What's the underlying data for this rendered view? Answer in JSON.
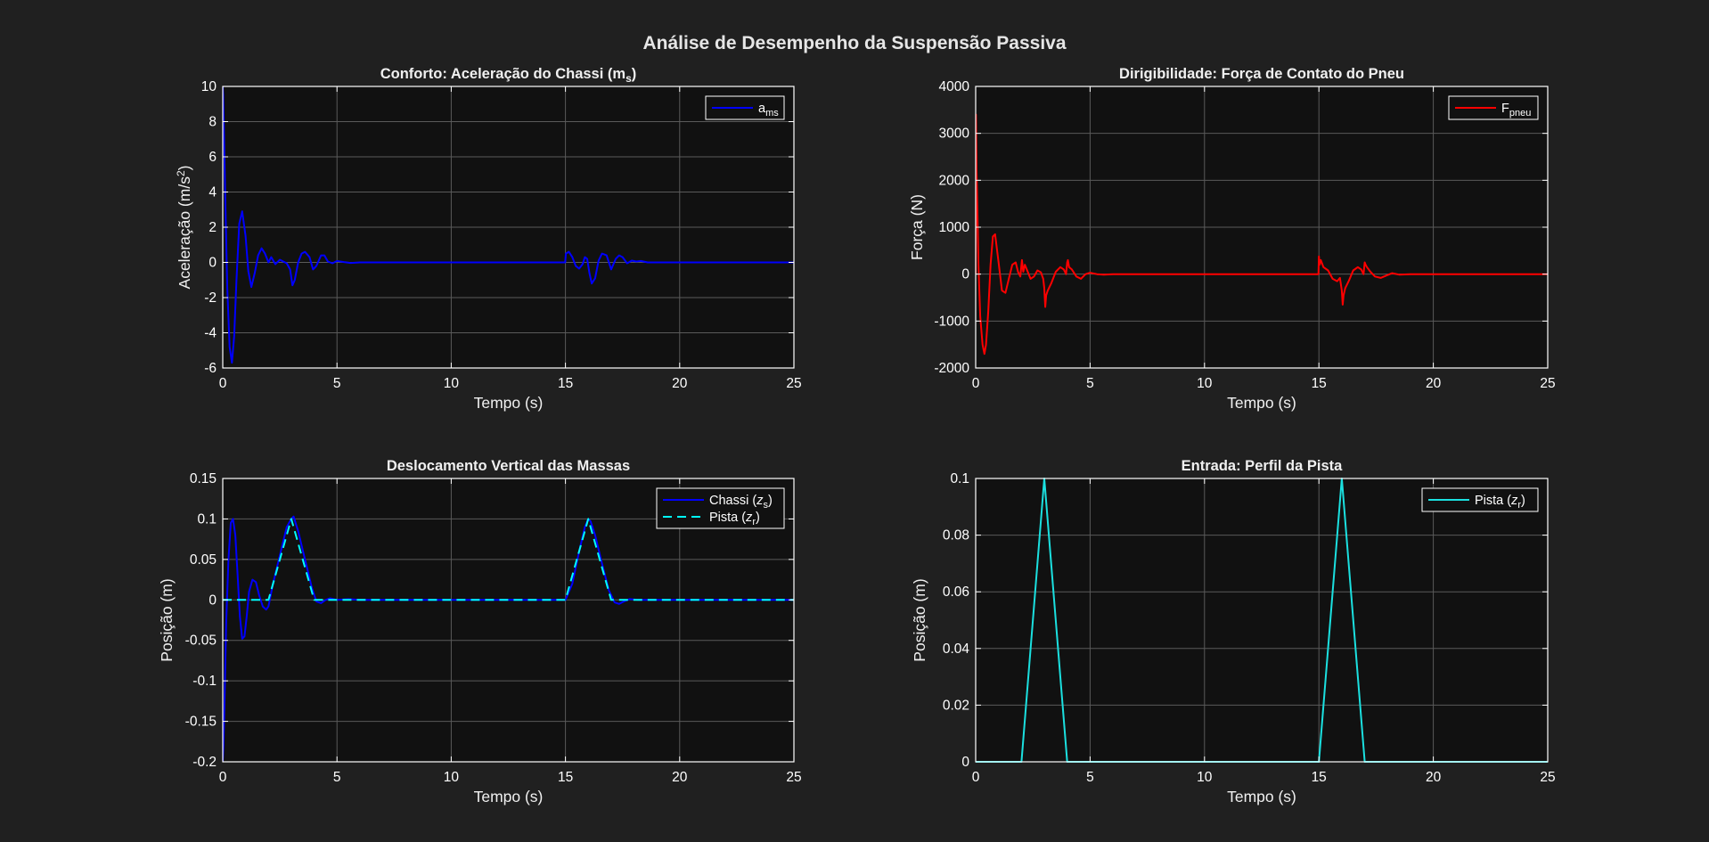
{
  "figure": {
    "title": "Análise de Desempenho da Suspensão Passiva",
    "background": "#202020",
    "axes_background": "#111111",
    "axes_color": "#ffffff",
    "grid_color": "#5a5a5a"
  },
  "chart_data": [
    {
      "id": "accel",
      "type": "line",
      "title": "Conforto: Aceleração do Chassi (m_s)",
      "title_parts": [
        "Conforto:  Aceleração  do  Chassi  (m",
        "s",
        ")"
      ],
      "xlabel": "Tempo (s)",
      "ylabel": "Aceleração (m/s²)",
      "ylabel_parts": [
        "Aceleração  (m/s",
        "2",
        ")"
      ],
      "xlim": [
        0,
        25
      ],
      "ylim": [
        -6,
        10
      ],
      "xticks": [
        0,
        5,
        10,
        15,
        20,
        25
      ],
      "yticks": [
        -6,
        -4,
        -2,
        0,
        2,
        4,
        6,
        8,
        10
      ],
      "grid": true,
      "legend_position": "top-right",
      "series": [
        {
          "name": "a_ms",
          "legend_parts": [
            "a",
            "ms"
          ],
          "color": "#0000ff",
          "dash": "solid",
          "x": [
            0,
            0.02,
            0.06,
            0.12,
            0.2,
            0.3,
            0.4,
            0.5,
            0.6,
            0.72,
            0.85,
            1.0,
            1.12,
            1.25,
            1.4,
            1.55,
            1.7,
            1.85,
            2.0,
            2.12,
            2.3,
            2.5,
            2.65,
            2.8,
            2.95,
            3.05,
            3.15,
            3.3,
            3.45,
            3.6,
            3.8,
            3.95,
            4.1,
            4.3,
            4.45,
            4.6,
            4.8,
            5.0,
            5.3,
            5.6,
            6.0,
            8,
            10,
            12,
            14,
            14.99,
            15.02,
            15.15,
            15.3,
            15.45,
            15.6,
            15.75,
            15.85,
            15.95,
            16.05,
            16.15,
            16.3,
            16.45,
            16.6,
            16.8,
            17.0,
            17.2,
            17.35,
            17.5,
            17.7,
            17.9,
            18.1,
            18.3,
            18.6,
            19.0,
            20,
            22,
            25
          ],
          "y": [
            10,
            9.5,
            7.0,
            3.0,
            -1.5,
            -4.8,
            -5.7,
            -4.2,
            -1.0,
            2.2,
            2.9,
            1.5,
            -0.5,
            -1.4,
            -0.6,
            0.4,
            0.8,
            0.5,
            0.0,
            0.3,
            -0.1,
            0.15,
            0.05,
            -0.05,
            -0.4,
            -1.3,
            -1.0,
            0.0,
            0.5,
            0.6,
            0.3,
            -0.4,
            -0.2,
            0.4,
            0.4,
            0.05,
            -0.05,
            0.08,
            0.02,
            -0.03,
            0.0,
            0.0,
            0.0,
            0.0,
            0.0,
            0.0,
            0.5,
            0.6,
            0.3,
            -0.2,
            -0.35,
            -0.1,
            0.3,
            0.2,
            -0.6,
            -1.2,
            -0.9,
            0.1,
            0.5,
            0.4,
            -0.4,
            0.2,
            0.4,
            0.3,
            -0.05,
            0.1,
            0.05,
            0.08,
            0.0,
            0.0,
            0.0,
            0.0,
            0.0
          ]
        }
      ]
    },
    {
      "id": "force",
      "type": "line",
      "title": "Dirigibilidade: Força de Contato do Pneu",
      "xlabel": "Tempo (s)",
      "ylabel": "Força (N)",
      "xlim": [
        0,
        25
      ],
      "ylim": [
        -2000,
        4000
      ],
      "xticks": [
        0,
        5,
        10,
        15,
        20,
        25
      ],
      "yticks": [
        -2000,
        -1000,
        0,
        1000,
        2000,
        3000,
        4000
      ],
      "grid": true,
      "legend_position": "top-right",
      "series": [
        {
          "name": "F_pneu",
          "legend_parts": [
            "F",
            "pneu"
          ],
          "color": "#ff0000",
          "dash": "solid",
          "x": [
            0,
            0.01,
            0.04,
            0.08,
            0.12,
            0.2,
            0.3,
            0.38,
            0.45,
            0.55,
            0.65,
            0.75,
            0.85,
            1.0,
            1.15,
            1.3,
            1.45,
            1.6,
            1.75,
            1.85,
            1.95,
            2.02,
            2.08,
            2.15,
            2.25,
            2.4,
            2.55,
            2.7,
            2.85,
            2.95,
            3.0,
            3.04,
            3.08,
            3.15,
            3.3,
            3.5,
            3.7,
            3.85,
            3.95,
            4.0,
            4.03,
            4.08,
            4.2,
            4.4,
            4.6,
            4.8,
            5.0,
            5.3,
            5.6,
            6.0,
            8,
            10,
            12,
            14,
            14.98,
            15.0,
            15.03,
            15.08,
            15.2,
            15.4,
            15.6,
            15.8,
            15.92,
            16.0,
            16.04,
            16.08,
            16.15,
            16.3,
            16.5,
            16.7,
            16.85,
            16.95,
            17.0,
            17.04,
            17.1,
            17.25,
            17.45,
            17.7,
            17.95,
            18.2,
            18.5,
            19.0,
            20,
            22,
            25
          ],
          "y": [
            0,
            3400,
            2200,
            1200,
            200,
            -900,
            -1500,
            -1700,
            -1500,
            -800,
            200,
            800,
            850,
            250,
            -350,
            -400,
            -100,
            200,
            250,
            50,
            -50,
            300,
            50,
            200,
            80,
            -100,
            -50,
            80,
            40,
            -100,
            -300,
            -700,
            -450,
            -350,
            -200,
            50,
            150,
            100,
            0,
            250,
            300,
            150,
            100,
            -50,
            -100,
            0,
            30,
            0,
            -10,
            0,
            0,
            0,
            0,
            0,
            0,
            380,
            200,
            300,
            150,
            80,
            -100,
            -150,
            -80,
            -350,
            -650,
            -450,
            -300,
            -150,
            80,
            150,
            100,
            0,
            250,
            200,
            150,
            50,
            -50,
            -80,
            -30,
            20,
            -10,
            0,
            0,
            0,
            0
          ]
        }
      ]
    },
    {
      "id": "displacement",
      "type": "line",
      "title": "Deslocamento Vertical das Massas",
      "xlabel": "Tempo (s)",
      "ylabel": "Posição (m)",
      "xlim": [
        0,
        25
      ],
      "ylim": [
        -0.2,
        0.15
      ],
      "xticks": [
        0,
        5,
        10,
        15,
        20,
        25
      ],
      "yticks": [
        -0.2,
        -0.15,
        -0.1,
        -0.05,
        0,
        0.05,
        0.1,
        0.15
      ],
      "ytick_labels": [
        "-0.2",
        "-0.15",
        "-0.1",
        "-0.05",
        "0",
        "0.05",
        "0.1",
        "0.15"
      ],
      "grid": true,
      "legend_position": "top-right",
      "series": [
        {
          "name": "Chassi (z_s)",
          "legend_parts": [
            "Chassi  (",
            "z",
            "s",
            ")"
          ],
          "color": "#0000ff",
          "dash": "solid",
          "x": [
            0,
            0.03,
            0.08,
            0.15,
            0.25,
            0.35,
            0.45,
            0.55,
            0.65,
            0.75,
            0.85,
            0.95,
            1.05,
            1.15,
            1.3,
            1.45,
            1.6,
            1.75,
            1.9,
            2.0,
            2.2,
            2.5,
            2.8,
            3.0,
            3.1,
            3.3,
            3.6,
            3.9,
            4.1,
            4.3,
            4.5,
            4.7,
            5.0,
            5.5,
            6.0,
            10,
            15,
            15.3,
            15.6,
            15.85,
            16.0,
            16.1,
            16.3,
            16.6,
            16.9,
            17.15,
            17.35,
            17.55,
            17.8,
            18.2,
            19,
            25
          ],
          "y": [
            -0.2,
            -0.18,
            -0.12,
            -0.03,
            0.05,
            0.095,
            0.1,
            0.08,
            0.03,
            -0.02,
            -0.048,
            -0.045,
            -0.02,
            0.01,
            0.025,
            0.022,
            0.005,
            -0.008,
            -0.012,
            -0.008,
            0.02,
            0.055,
            0.09,
            0.1,
            0.103,
            0.085,
            0.05,
            0.015,
            -0.002,
            -0.004,
            0.0,
            0.002,
            0.0,
            0.001,
            0.0,
            0.0,
            0.0,
            0.02,
            0.06,
            0.09,
            0.1,
            0.097,
            0.08,
            0.045,
            0.012,
            -0.003,
            -0.005,
            -0.002,
            0.001,
            0.0,
            0.0,
            0.0
          ]
        },
        {
          "name": "Pista (z_r)",
          "legend_parts": [
            "Pista  (",
            "z",
            "r",
            ")"
          ],
          "color": "#00ffff",
          "dash": "dashed",
          "x": [
            0,
            2,
            3,
            4,
            15,
            16,
            17,
            25
          ],
          "y": [
            0,
            0,
            0.1,
            0,
            0,
            0.1,
            0,
            0
          ]
        }
      ]
    },
    {
      "id": "road",
      "type": "line",
      "title": "Entrada: Perfil da Pista",
      "xlabel": "Tempo (s)",
      "ylabel": "Posição (m)",
      "xlim": [
        0,
        25
      ],
      "ylim": [
        0,
        0.1
      ],
      "xticks": [
        0,
        5,
        10,
        15,
        20,
        25
      ],
      "yticks": [
        0,
        0.02,
        0.04,
        0.06,
        0.08,
        0.1
      ],
      "ytick_labels": [
        "0",
        "0.02",
        "0.04",
        "0.06",
        "0.08",
        "0.1"
      ],
      "grid": true,
      "legend_position": "top-right",
      "series": [
        {
          "name": "Pista (z_r)",
          "legend_parts": [
            "Pista  (",
            "z",
            "r",
            ")"
          ],
          "color": "#1be0e0",
          "dash": "solid",
          "x": [
            0,
            2,
            3,
            4,
            15,
            16,
            17,
            25
          ],
          "y": [
            0,
            0,
            0.1,
            0,
            0,
            0.1,
            0,
            0
          ]
        }
      ]
    }
  ]
}
